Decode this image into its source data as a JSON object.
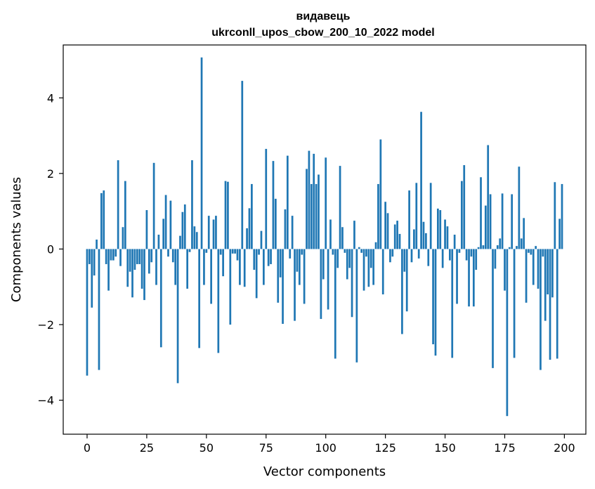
{
  "chart_data": {
    "type": "bar",
    "title": "видавець",
    "subtitle": "ukrconll_upos_cbow_200_10_2022 model",
    "xlabel": "Vector components",
    "ylabel": "Components values",
    "xlim": [
      -10,
      209
    ],
    "ylim": [
      -4.9,
      5.4
    ],
    "xticks": [
      0,
      25,
      50,
      75,
      100,
      125,
      150,
      175,
      200
    ],
    "yticks": [
      -4,
      -2,
      0,
      2,
      4
    ],
    "xtick_labels": [
      "0",
      "25",
      "50",
      "75",
      "100",
      "125",
      "150",
      "175",
      "200"
    ],
    "ytick_labels": [
      "−4",
      "−2",
      "0",
      "2",
      "4"
    ],
    "grid": false,
    "bar_color": "#1f77b4",
    "x": [
      0,
      1,
      2,
      3,
      4,
      5,
      6,
      7,
      8,
      9,
      10,
      11,
      12,
      13,
      14,
      15,
      16,
      17,
      18,
      19,
      20,
      21,
      22,
      23,
      24,
      25,
      26,
      27,
      28,
      29,
      30,
      31,
      32,
      33,
      34,
      35,
      36,
      37,
      38,
      39,
      40,
      41,
      42,
      43,
      44,
      45,
      46,
      47,
      48,
      49,
      50,
      51,
      52,
      53,
      54,
      55,
      56,
      57,
      58,
      59,
      60,
      61,
      62,
      63,
      64,
      65,
      66,
      67,
      68,
      69,
      70,
      71,
      72,
      73,
      74,
      75,
      76,
      77,
      78,
      79,
      80,
      81,
      82,
      83,
      84,
      85,
      86,
      87,
      88,
      89,
      90,
      91,
      92,
      93,
      94,
      95,
      96,
      97,
      98,
      99,
      100,
      101,
      102,
      103,
      104,
      105,
      106,
      107,
      108,
      109,
      110,
      111,
      112,
      113,
      114,
      115,
      116,
      117,
      118,
      119,
      120,
      121,
      122,
      123,
      124,
      125,
      126,
      127,
      128,
      129,
      130,
      131,
      132,
      133,
      134,
      135,
      136,
      137,
      138,
      139,
      140,
      141,
      142,
      143,
      144,
      145,
      146,
      147,
      148,
      149,
      150,
      151,
      152,
      153,
      154,
      155,
      156,
      157,
      158,
      159,
      160,
      161,
      162,
      163,
      164,
      165,
      166,
      167,
      168,
      169,
      170,
      171,
      172,
      173,
      174,
      175,
      176,
      177,
      178,
      179,
      180,
      181,
      182,
      183,
      184,
      185,
      186,
      187,
      188,
      189,
      190,
      191,
      192,
      193,
      194,
      195,
      196,
      197,
      198,
      199
    ],
    "values": [
      -3.35,
      -0.4,
      -1.55,
      -0.7,
      0.25,
      -3.2,
      1.48,
      1.55,
      -0.4,
      -1.1,
      -0.3,
      -0.3,
      -0.2,
      2.35,
      -0.45,
      0.58,
      1.8,
      -1.0,
      -0.6,
      -1.28,
      -0.55,
      -0.4,
      -0.4,
      -1.05,
      -1.35,
      1.03,
      -0.65,
      -0.35,
      2.28,
      -0.95,
      0.38,
      -2.6,
      0.8,
      1.43,
      -0.2,
      1.28,
      -0.35,
      -0.95,
      -3.55,
      0.35,
      0.98,
      1.18,
      -1.05,
      -0.08,
      2.35,
      0.6,
      0.45,
      -2.62,
      5.07,
      -0.95,
      -0.1,
      0.88,
      -1.45,
      0.78,
      0.88,
      -2.75,
      -0.15,
      -0.72,
      1.8,
      1.78,
      -2.0,
      -0.12,
      -0.12,
      -0.3,
      -0.95,
      4.45,
      -1.0,
      0.55,
      1.08,
      1.72,
      -0.55,
      -1.3,
      -0.15,
      0.48,
      -0.95,
      2.65,
      -0.45,
      -0.4,
      2.33,
      1.33,
      -1.42,
      -0.75,
      -1.98,
      1.05,
      2.47,
      -0.25,
      0.88,
      -1.9,
      -0.6,
      -0.95,
      -0.15,
      -1.45,
      2.12,
      2.6,
      1.72,
      2.52,
      1.72,
      1.97,
      -1.85,
      -0.8,
      2.42,
      -1.6,
      0.78,
      -0.15,
      -2.9,
      -0.5,
      2.2,
      0.58,
      -0.1,
      -0.8,
      -0.5,
      -1.8,
      0.75,
      -3.0,
      0.05,
      -0.1,
      -1.1,
      -0.2,
      -1.0,
      -0.5,
      -0.95,
      0.18,
      1.72,
      2.9,
      -1.2,
      1.25,
      0.95,
      -0.35,
      -0.2,
      0.65,
      0.75,
      0.4,
      -2.25,
      -0.6,
      -1.65,
      1.55,
      -0.35,
      0.52,
      1.75,
      -0.25,
      3.63,
      0.72,
      0.42,
      -0.45,
      1.75,
      -2.52,
      -2.82,
      1.07,
      1.03,
      -0.5,
      0.78,
      0.6,
      -0.3,
      -2.88,
      0.38,
      -1.45,
      -0.1,
      1.8,
      2.22,
      -0.3,
      -1.52,
      -0.2,
      -1.52,
      -0.55,
      0.05,
      1.9,
      0.1,
      1.15,
      2.75,
      1.45,
      -3.15,
      -0.52,
      0.1,
      0.28,
      1.47,
      -1.1,
      -4.42,
      0.05,
      1.45,
      -2.88,
      0.08,
      2.18,
      0.28,
      0.82,
      -1.42,
      -0.1,
      -0.15,
      -0.95,
      0.08,
      -1.05,
      -3.2,
      -0.2,
      -1.9,
      -1.2,
      -2.93,
      -1.28,
      1.77,
      -2.9,
      0.8,
      1.72
    ]
  }
}
